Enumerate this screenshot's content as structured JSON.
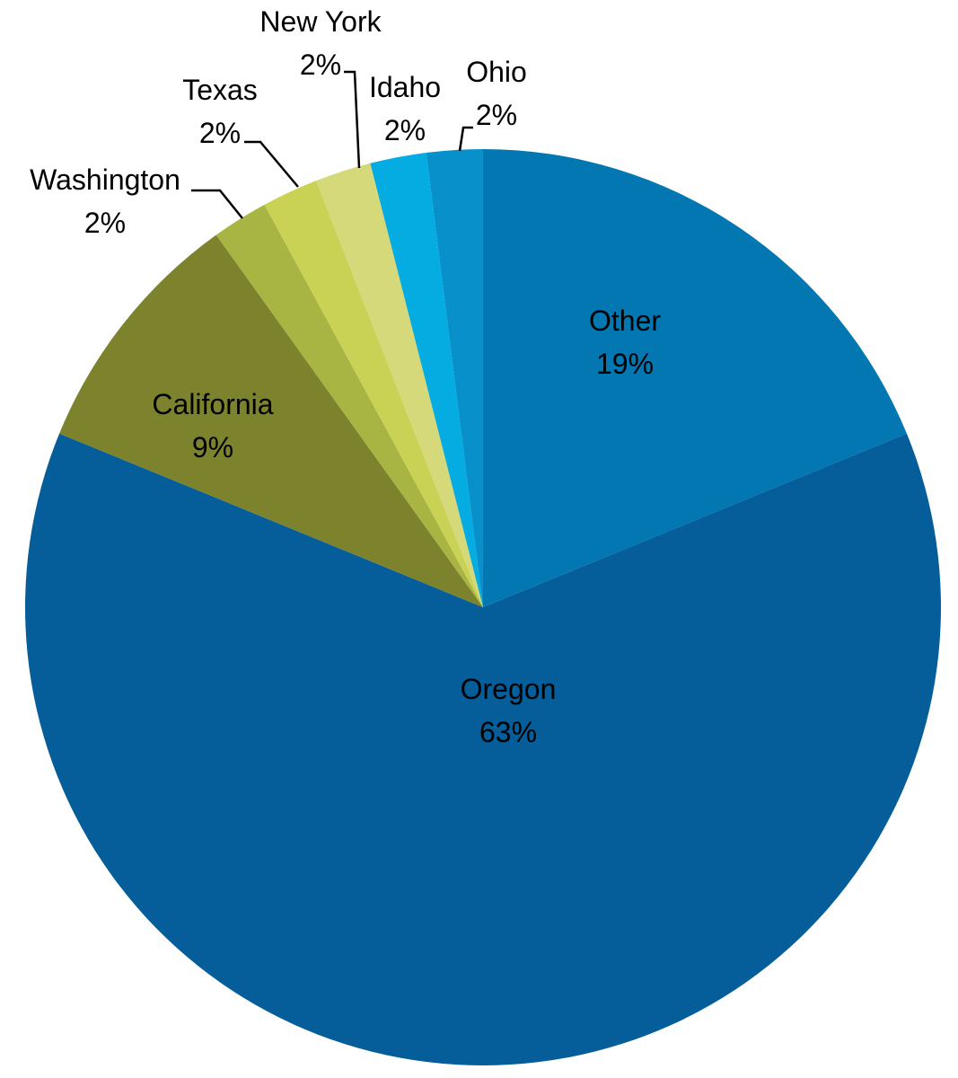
{
  "chart_data": {
    "type": "pie",
    "start_angle_deg": 0,
    "direction": "clockwise",
    "slices": [
      {
        "label": "Other",
        "value": 19,
        "value_label": "19%",
        "color": "#0377B1"
      },
      {
        "label": "Oregon",
        "value": 63,
        "value_label": "63%",
        "color": "#055D99"
      },
      {
        "label": "California",
        "value": 9,
        "value_label": "9%",
        "color": "#7D832D"
      },
      {
        "label": "Washington",
        "value": 2,
        "value_label": "2%",
        "color": "#A8B542"
      },
      {
        "label": "Texas",
        "value": 2,
        "value_label": "2%",
        "color": "#CAD256"
      },
      {
        "label": "New York",
        "value": 2,
        "value_label": "2%",
        "color": "#D6D97A"
      },
      {
        "label": "Idaho",
        "value": 2,
        "value_label": "2%",
        "color": "#04ACE2"
      },
      {
        "label": "Ohio",
        "value": 2,
        "value_label": "2%",
        "color": "#0890CB"
      }
    ]
  }
}
